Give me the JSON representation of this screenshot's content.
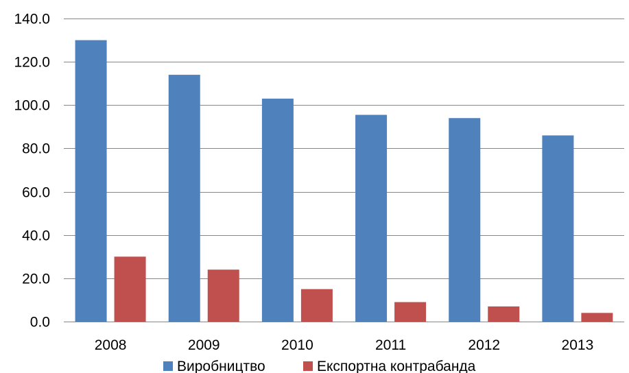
{
  "chart_data": {
    "type": "bar",
    "categories": [
      "2008",
      "2009",
      "2010",
      "2011",
      "2012",
      "2013"
    ],
    "series": [
      {
        "name": "Виробництво",
        "color": "#4F81BD",
        "values": [
          130.0,
          114.0,
          103.0,
          95.5,
          94.0,
          86.0
        ]
      },
      {
        "name": "Експортна контрабанда",
        "color": "#C0504D",
        "values": [
          30.0,
          24.0,
          15.0,
          9.0,
          7.0,
          4.0
        ]
      }
    ],
    "yticks": [
      "0.0",
      "20.0",
      "40.0",
      "60.0",
      "80.0",
      "100.0",
      "120.0",
      "140.0"
    ],
    "ylim": [
      0,
      140
    ],
    "grid": true,
    "gridline_color": "#868686",
    "legend_position": "bottom",
    "title": "",
    "xlabel": "",
    "ylabel": ""
  }
}
